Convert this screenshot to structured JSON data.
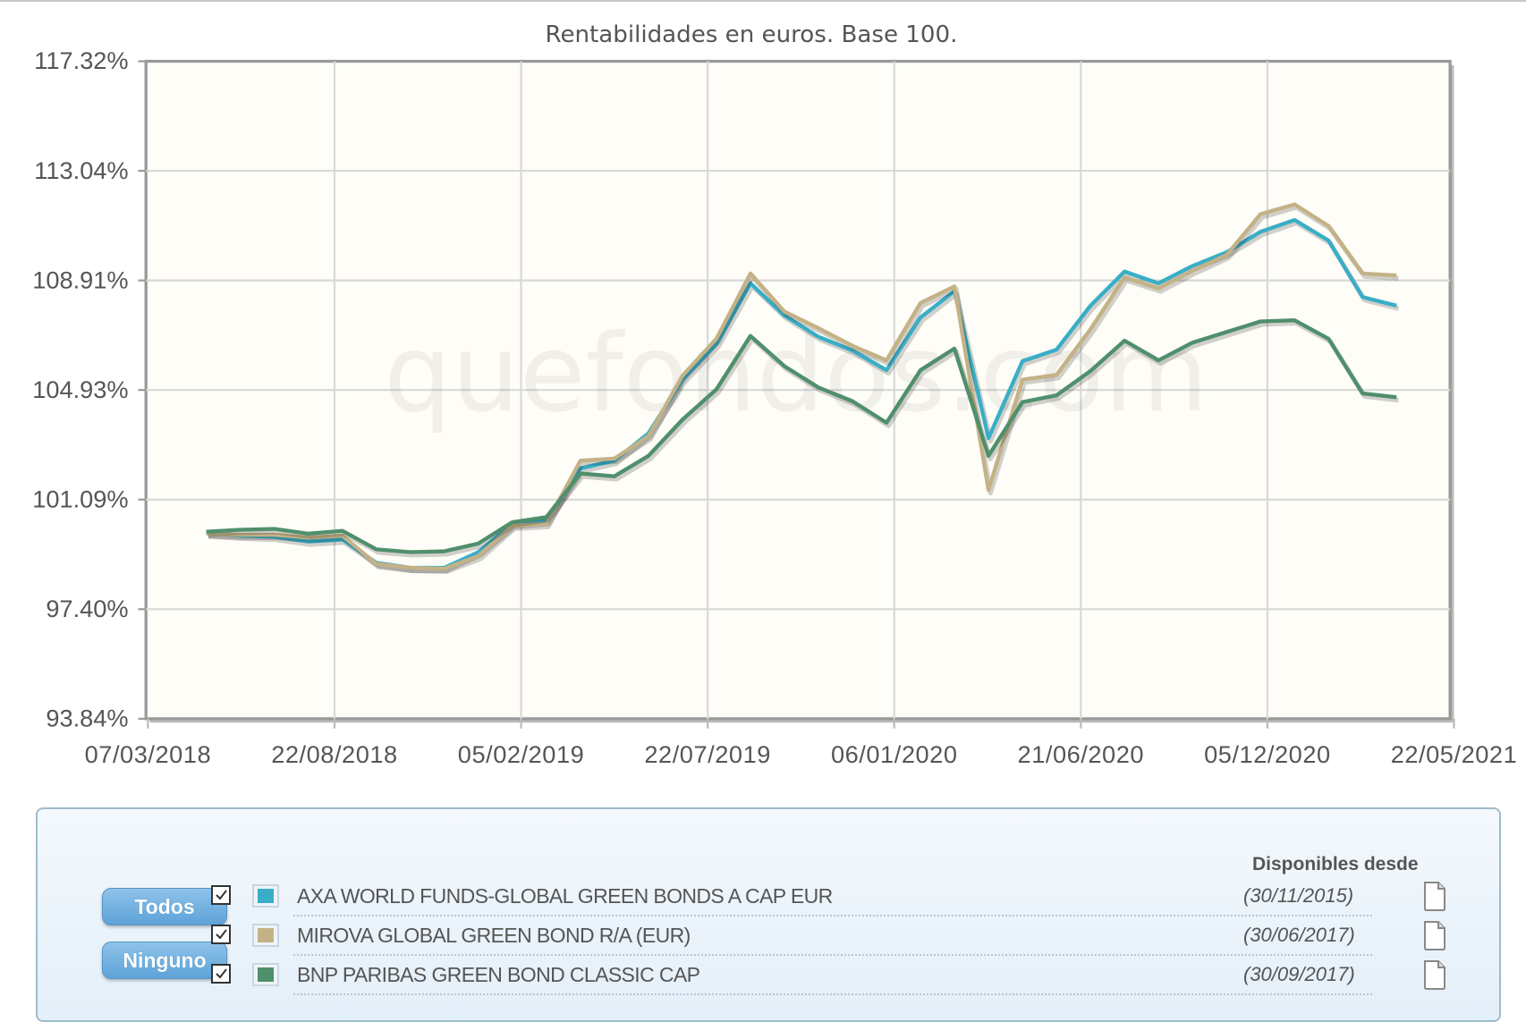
{
  "chart_data": {
    "type": "line",
    "title": "Rentabilidades en euros. Base 100.",
    "xlabel": "",
    "ylabel": "",
    "ylim": [
      93.84,
      117.32
    ],
    "yticks": [
      "117.32%",
      "113.04%",
      "108.91%",
      "104.93%",
      "101.09%",
      "97.40%",
      "93.84%"
    ],
    "xticks": [
      "07/03/2018",
      "22/08/2018",
      "05/02/2019",
      "22/07/2019",
      "06/01/2020",
      "21/06/2020",
      "05/12/2020",
      "22/05/2021"
    ],
    "grid": true,
    "legend_position": "bottom",
    "watermark": "quefondos.com",
    "x_index": [
      0,
      1,
      2,
      3,
      4,
      5,
      6,
      7,
      8,
      9,
      10,
      11,
      12,
      13,
      14,
      15,
      16,
      17,
      18,
      19,
      20,
      21,
      22,
      23,
      24,
      25,
      26,
      27,
      28,
      29,
      30,
      31,
      32,
      33,
      34,
      35
    ],
    "x_start": "2018-05 (approx.)",
    "x_end": "2021-04 (approx.)",
    "series": [
      {
        "name": "AXA WORLD FUNDS-GLOBAL GREEN BONDS A CAP EUR",
        "color": "#3aaec6",
        "values": [
          100.48,
          100.38,
          100.34,
          100.17,
          100.24,
          99.41,
          99.23,
          99.23,
          99.79,
          100.8,
          100.9,
          102.78,
          103.06,
          104.03,
          105.95,
          107.23,
          109.39,
          108.24,
          107.48,
          106.99,
          106.29,
          108.17,
          109.11,
          103.86,
          106.61,
          107.02,
          108.59,
          109.81,
          109.39,
          110.01,
          110.5,
          111.23,
          111.65,
          110.92,
          108.9,
          108.59
        ]
      },
      {
        "name": "MIROVA GLOBAL GREEN BOND R/A (EUR)",
        "color": "#c4b287",
        "values": [
          100.45,
          100.41,
          100.41,
          100.31,
          100.38,
          99.37,
          99.23,
          99.2,
          99.65,
          100.73,
          100.8,
          103.06,
          103.13,
          103.93,
          106.09,
          107.41,
          109.74,
          108.38,
          107.79,
          107.16,
          106.64,
          108.69,
          109.28,
          102.01,
          105.95,
          106.12,
          107.75,
          109.6,
          109.21,
          109.84,
          110.4,
          111.86,
          112.21,
          111.44,
          109.74,
          109.67
        ]
      },
      {
        "name": "BNP PARIBAS GREEN BOND CLASSIC CAP",
        "color": "#4f8f6c",
        "values": [
          100.52,
          100.59,
          100.62,
          100.45,
          100.55,
          99.89,
          99.79,
          99.82,
          100.1,
          100.86,
          101.04,
          102.6,
          102.5,
          103.23,
          104.52,
          105.6,
          107.51,
          106.43,
          105.67,
          105.18,
          104.41,
          106.29,
          107.06,
          103.23,
          105.15,
          105.39,
          106.26,
          107.34,
          106.64,
          107.27,
          107.65,
          108.03,
          108.07,
          107.41,
          105.46,
          105.32
        ]
      }
    ]
  },
  "legend": {
    "header": "Disponibles desde",
    "buttons": {
      "all": "Todos",
      "none": "Ninguno"
    },
    "items": [
      {
        "name": "AXA WORLD FUNDS-GLOBAL GREEN BONDS A CAP EUR",
        "date": "(30/11/2015)",
        "color": "#3aaec6",
        "checked": true,
        "icon": "document-icon"
      },
      {
        "name": "MIROVA GLOBAL GREEN BOND R/A (EUR)",
        "date": "(30/06/2017)",
        "color": "#c4b287",
        "checked": true,
        "icon": "document-icon"
      },
      {
        "name": "BNP PARIBAS GREEN BOND CLASSIC CAP",
        "date": "(30/09/2017)",
        "color": "#4f8f6c",
        "checked": true,
        "icon": "document-icon"
      }
    ]
  },
  "colors": {
    "plot_background": "#fffdf7",
    "grid": "#d8d8d8",
    "axis": "#999999",
    "legend_border": "#9fbccc"
  }
}
